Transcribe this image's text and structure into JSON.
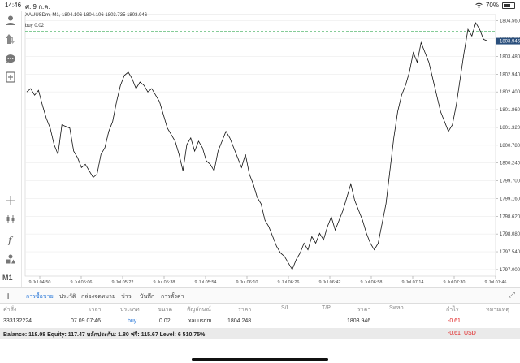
{
  "status": {
    "time": "14:46",
    "date": "ศ. 9 ก.ค.",
    "battery": "70%",
    "battery_level": 0.7
  },
  "sidebar": {
    "icons": [
      "account-icon",
      "trade-icon",
      "chat-icon",
      "new-order-icon",
      "crosshair-icon",
      "chart-type-icon",
      "indicator-icon",
      "objects-icon"
    ],
    "timeframe": "M1"
  },
  "chart": {
    "symbol_info": "XAUUSDm, M1, 1804.106 1804.106 1803.735 1803.946",
    "order_label": "buy 0.02",
    "order_price": 1804.248,
    "current_price": "1803.946",
    "current_price_value": 1803.946,
    "y_ticks": [
      "1804.560",
      "1804.020",
      "1803.480",
      "1802.940",
      "1802.400",
      "1801.860",
      "1801.320",
      "1800.780",
      "1800.240",
      "1799.700",
      "1799.160",
      "1798.620",
      "1798.080",
      "1797.540",
      "1797.000"
    ],
    "y_tick_values": [
      1804.56,
      1804.02,
      1803.48,
      1802.94,
      1802.4,
      1801.86,
      1801.32,
      1800.78,
      1800.24,
      1799.7,
      1799.16,
      1798.62,
      1798.08,
      1797.54,
      1797.0
    ],
    "x_ticks": [
      "9 Jul 04:50",
      "9 Jul 05:06",
      "9 Jul 05:22",
      "9 Jul 05:38",
      "9 Jul 05:54",
      "9 Jul 06:10",
      "9 Jul 06:26",
      "9 Jul 06:42",
      "9 Jul 06:58",
      "9 Jul 07:14",
      "9 Jul 07:30",
      "9 Jul 07:46"
    ],
    "colors": {
      "line": "#111111",
      "grid": "#ececec",
      "order_line": "#3fae5a",
      "price_line": "#2a4f7c",
      "price_tag": "#2a4f7c"
    }
  },
  "chart_data": {
    "type": "line",
    "ylim": [
      1796.8,
      1804.75
    ],
    "values": [
      1802.4,
      1802.5,
      1802.3,
      1802.45,
      1802.0,
      1801.6,
      1801.3,
      1800.8,
      1800.5,
      1801.4,
      1801.35,
      1801.3,
      1800.6,
      1800.4,
      1800.1,
      1800.2,
      1800.0,
      1799.8,
      1799.9,
      1800.5,
      1800.7,
      1801.2,
      1801.5,
      1802.1,
      1802.6,
      1802.9,
      1803.0,
      1802.8,
      1802.5,
      1802.7,
      1802.6,
      1802.4,
      1802.5,
      1802.3,
      1802.1,
      1801.7,
      1801.3,
      1801.1,
      1800.9,
      1800.5,
      1800.0,
      1800.8,
      1801.0,
      1800.6,
      1800.9,
      1800.7,
      1800.3,
      1800.2,
      1800.0,
      1800.6,
      1800.9,
      1801.2,
      1801.0,
      1800.7,
      1800.4,
      1800.1,
      1800.5,
      1799.9,
      1799.6,
      1799.2,
      1799.0,
      1798.5,
      1798.3,
      1798.0,
      1797.7,
      1797.5,
      1797.4,
      1797.2,
      1797.0,
      1797.3,
      1797.5,
      1797.8,
      1797.6,
      1798.0,
      1797.8,
      1798.1,
      1797.9,
      1798.3,
      1798.6,
      1798.2,
      1798.5,
      1798.8,
      1799.2,
      1799.6,
      1799.1,
      1798.8,
      1798.5,
      1798.1,
      1797.8,
      1797.6,
      1797.8,
      1798.4,
      1799.0,
      1800.0,
      1801.0,
      1801.8,
      1802.3,
      1802.6,
      1803.0,
      1803.6,
      1803.3,
      1803.9,
      1803.6,
      1803.3,
      1802.8,
      1802.3,
      1801.8,
      1801.5,
      1801.2,
      1801.4,
      1802.0,
      1802.8,
      1803.6,
      1804.3,
      1804.1,
      1804.5,
      1804.3,
      1804.0,
      1803.95
    ],
    "x_ticks": [
      "9 Jul 04:50",
      "9 Jul 05:06",
      "9 Jul 05:22",
      "9 Jul 05:38",
      "9 Jul 05:54",
      "9 Jul 06:10",
      "9 Jul 06:26",
      "9 Jul 06:42",
      "9 Jul 06:58",
      "9 Jul 07:14",
      "9 Jul 07:30",
      "9 Jul 07:46"
    ],
    "grid": true
  },
  "tabs": [
    {
      "label": "การซื้อขาย",
      "active": true
    },
    {
      "label": "ประวัติ",
      "active": false
    },
    {
      "label": "กล่องจดหมาย",
      "active": false
    },
    {
      "label": "ข่าว",
      "active": false
    },
    {
      "label": "บันทึก",
      "active": false
    },
    {
      "label": "การตั้งค่า",
      "active": false
    }
  ],
  "table": {
    "headers": [
      "คำสั่ง",
      "เวลา",
      "ประเภท",
      "ขนาด",
      "สัญลักษณ์",
      "ราคา",
      "S/L",
      "T/P",
      "ราคา",
      "Swap",
      "กำไร",
      "หมายเหตุ"
    ],
    "rows": [
      {
        "order": "333132224",
        "time": "07.09 07:46",
        "type": "buy",
        "volume": "0.02",
        "symbol": "xauusdm",
        "price": "1804.248",
        "sl": "",
        "tp": "",
        "current": "1803.946",
        "swap": "",
        "profit": "-0.61",
        "comment": ""
      }
    ]
  },
  "balance": {
    "text": "Balance: 118.08 Equity: 117.47 หลักประกัน: 1.80 ฟรี: 115.67 Level: 6 510.75%",
    "profit": "-0.61",
    "currency": "USD"
  }
}
